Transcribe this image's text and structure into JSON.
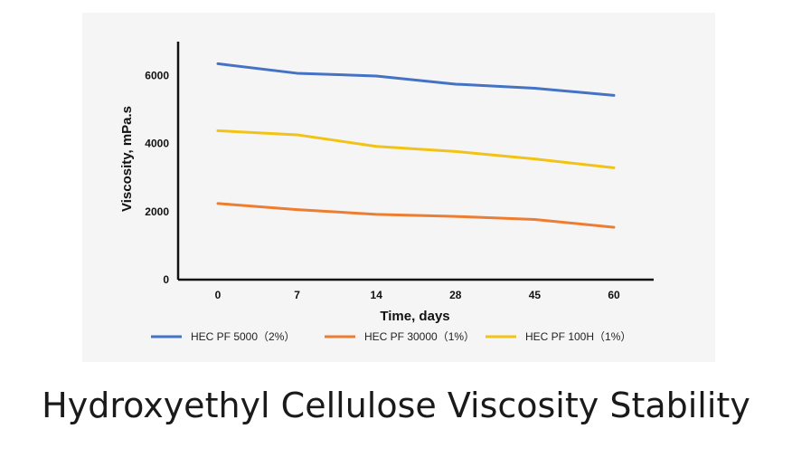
{
  "caption": "Hydroxyethyl Cellulose Viscosity Stability",
  "chart_data": {
    "type": "line",
    "title": "",
    "xlabel": "Time, days",
    "ylabel": "Viscosity, mPa.s",
    "categories": [
      "0",
      "7",
      "14",
      "28",
      "45",
      "60"
    ],
    "ylim": [
      0,
      7000
    ],
    "yticks": [
      0,
      2000,
      4000,
      6000
    ],
    "ytick_labels": [
      "0",
      "2000",
      "4000",
      "6000"
    ],
    "grid": false,
    "legend_position": "bottom",
    "series": [
      {
        "name": "HEC PF 5000（2%）",
        "color": "#4472c4",
        "values": [
          6350,
          6070,
          5990,
          5750,
          5630,
          5420
        ]
      },
      {
        "name": "HEC PF 30000（1%）",
        "color": "#ed7d31",
        "values": [
          2240,
          2060,
          1920,
          1860,
          1770,
          1540
        ]
      },
      {
        "name": "HEC PF 100H（1%）",
        "color": "#f2c314",
        "values": [
          4380,
          4260,
          3920,
          3770,
          3550,
          3290
        ]
      }
    ]
  }
}
